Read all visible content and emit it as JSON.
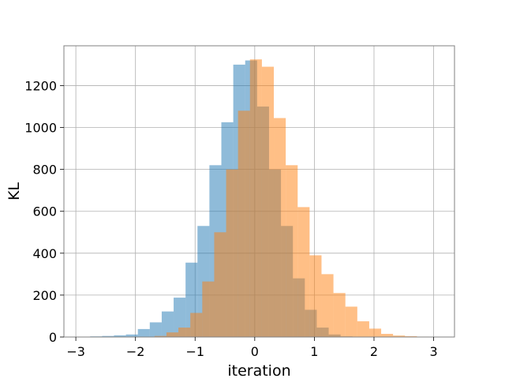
{
  "chart_data": {
    "type": "bar",
    "title": "",
    "xlabel": "iteration",
    "ylabel": "KL",
    "xlim": [
      -3.2,
      3.35
    ],
    "ylim": [
      0,
      1390
    ],
    "xticks": [
      -3,
      -2,
      -1,
      0,
      1,
      2,
      3
    ],
    "xtick_labels": [
      "−3",
      "−2",
      "−1",
      "0",
      "1",
      "2",
      "3"
    ],
    "yticks": [
      0,
      200,
      400,
      600,
      800,
      1000,
      1200
    ],
    "ytick_labels": [
      "0",
      "200",
      "400",
      "600",
      "800",
      "1000",
      "1200"
    ],
    "grid": true,
    "series": [
      {
        "color": "#1f77b4",
        "opacity": 0.5,
        "bin_edges": [
          -2.76,
          -2.56,
          -2.36,
          -2.16,
          -1.96,
          -1.76,
          -1.56,
          -1.36,
          -1.16,
          -0.96,
          -0.76,
          -0.56,
          -0.36,
          -0.16,
          0.04,
          0.24,
          0.44,
          0.64,
          0.84,
          1.04,
          1.24,
          1.44,
          1.64
        ],
        "values": [
          3,
          5,
          8,
          12,
          38,
          70,
          122,
          188,
          355,
          530,
          820,
          1025,
          1300,
          1320,
          1100,
          800,
          530,
          280,
          130,
          45,
          12,
          3
        ]
      },
      {
        "color": "#ff7f0e",
        "opacity": 0.5,
        "bin_edges": [
          -1.68,
          -1.48,
          -1.28,
          -1.08,
          -0.88,
          -0.68,
          -0.48,
          -0.28,
          -0.08,
          0.12,
          0.32,
          0.52,
          0.72,
          0.92,
          1.12,
          1.32,
          1.52,
          1.72,
          1.92,
          2.12,
          2.32,
          2.52,
          2.72,
          2.92
        ],
        "values": [
          5,
          22,
          45,
          115,
          265,
          500,
          800,
          1080,
          1325,
          1290,
          1045,
          820,
          620,
          390,
          300,
          210,
          145,
          75,
          40,
          15,
          7,
          4,
          2
        ]
      }
    ]
  }
}
